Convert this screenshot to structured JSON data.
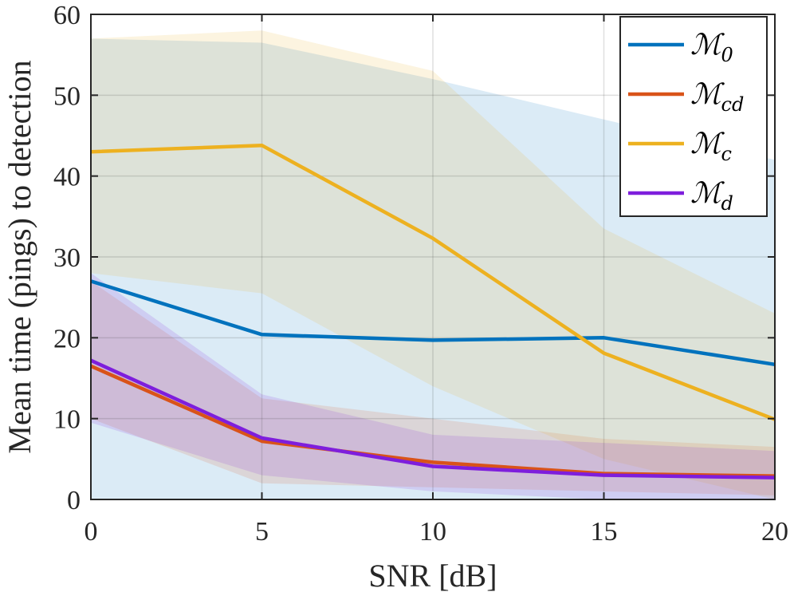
{
  "chart_data": {
    "type": "line",
    "title": "",
    "xlabel": "SNR [dB]",
    "ylabel": "Mean time (pings) to detection",
    "x": [
      0,
      5,
      10,
      15,
      20
    ],
    "xlim": [
      0,
      20
    ],
    "ylim": [
      0,
      60
    ],
    "xticks": [
      0,
      5,
      10,
      15,
      20
    ],
    "yticks": [
      0,
      10,
      20,
      30,
      40,
      50,
      60
    ],
    "grid": true,
    "legend_position": "top-right",
    "series": [
      {
        "name": "M0",
        "legend_main": "ℳ",
        "legend_sub": "0",
        "color": "#0072BD",
        "values": [
          27.0,
          20.4,
          19.7,
          20.0,
          16.7
        ],
        "band_upper": [
          57.0,
          56.5,
          52.0,
          47.0,
          42.0
        ],
        "band_lower": [
          0,
          0,
          0,
          0,
          0
        ]
      },
      {
        "name": "Mcd",
        "legend_main": "ℳ",
        "legend_sub": "cd",
        "color": "#D95319",
        "values": [
          16.5,
          7.2,
          4.6,
          3.2,
          2.9
        ],
        "band_upper": [
          27.0,
          12.5,
          10.0,
          7.5,
          6.5
        ],
        "band_lower": [
          10.0,
          2.0,
          1.5,
          1.0,
          0.5
        ]
      },
      {
        "name": "Mc",
        "legend_main": "ℳ",
        "legend_sub": "c",
        "color": "#EDB120",
        "values": [
          43.0,
          43.8,
          32.3,
          18.1,
          9.9
        ],
        "band_upper": [
          57.0,
          58.0,
          53.0,
          33.5,
          23.0
        ],
        "band_lower": [
          28.0,
          25.5,
          14.0,
          5.0,
          0
        ]
      },
      {
        "name": "Md",
        "legend_main": "ℳ",
        "legend_sub": "d",
        "color": "#7E1EDC",
        "values": [
          17.2,
          7.6,
          4.1,
          3.0,
          2.7
        ],
        "band_upper": [
          28.0,
          13.0,
          8.0,
          7.0,
          6.0
        ],
        "band_lower": [
          9.5,
          3.0,
          1.0,
          0,
          0
        ]
      }
    ]
  }
}
